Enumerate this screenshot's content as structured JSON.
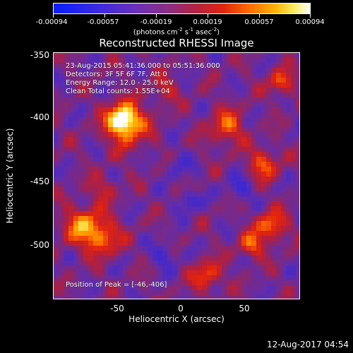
{
  "colorbar": {
    "labels": [
      "-0.00094",
      "-0.00057",
      "-0.00019",
      "0.00019",
      "0.00057",
      "0.00094"
    ],
    "units_prefix": "(photons cm",
    "units_exp1": "-2",
    "units_mid1": " s",
    "units_exp2": "-1",
    "units_mid2": " asec",
    "units_exp3": "-2",
    "units_suffix": ")"
  },
  "title": "Reconstructed RHESSI Image",
  "info": {
    "time_range": "23-Aug-2015 05:41:36.000 to 05:51:36.000",
    "detectors": "Detectors: 3F 5F 6F 7F, Att 0",
    "energy": "Energy Range: 12.0 - 25.0 keV",
    "clean": "Clean    Total counts: 1.55E+04",
    "peak": "Position of Peak = [-46,-406]"
  },
  "axes": {
    "xlabel": "Heliocentric X (arcsec)",
    "ylabel": "Heliocentric Y (arcsec)",
    "x_ticks": [
      "-50",
      "0",
      "50"
    ],
    "y_ticks": [
      "-350",
      "-400",
      "-450",
      "-500"
    ]
  },
  "timestamp": "12-Aug-2017 04:54",
  "colors": {
    "background": "#000000",
    "colormap": [
      "#0a1dff",
      "#6a31b8",
      "#b4233e",
      "#ff6a00",
      "#ffee66",
      "#ffffff"
    ]
  }
}
